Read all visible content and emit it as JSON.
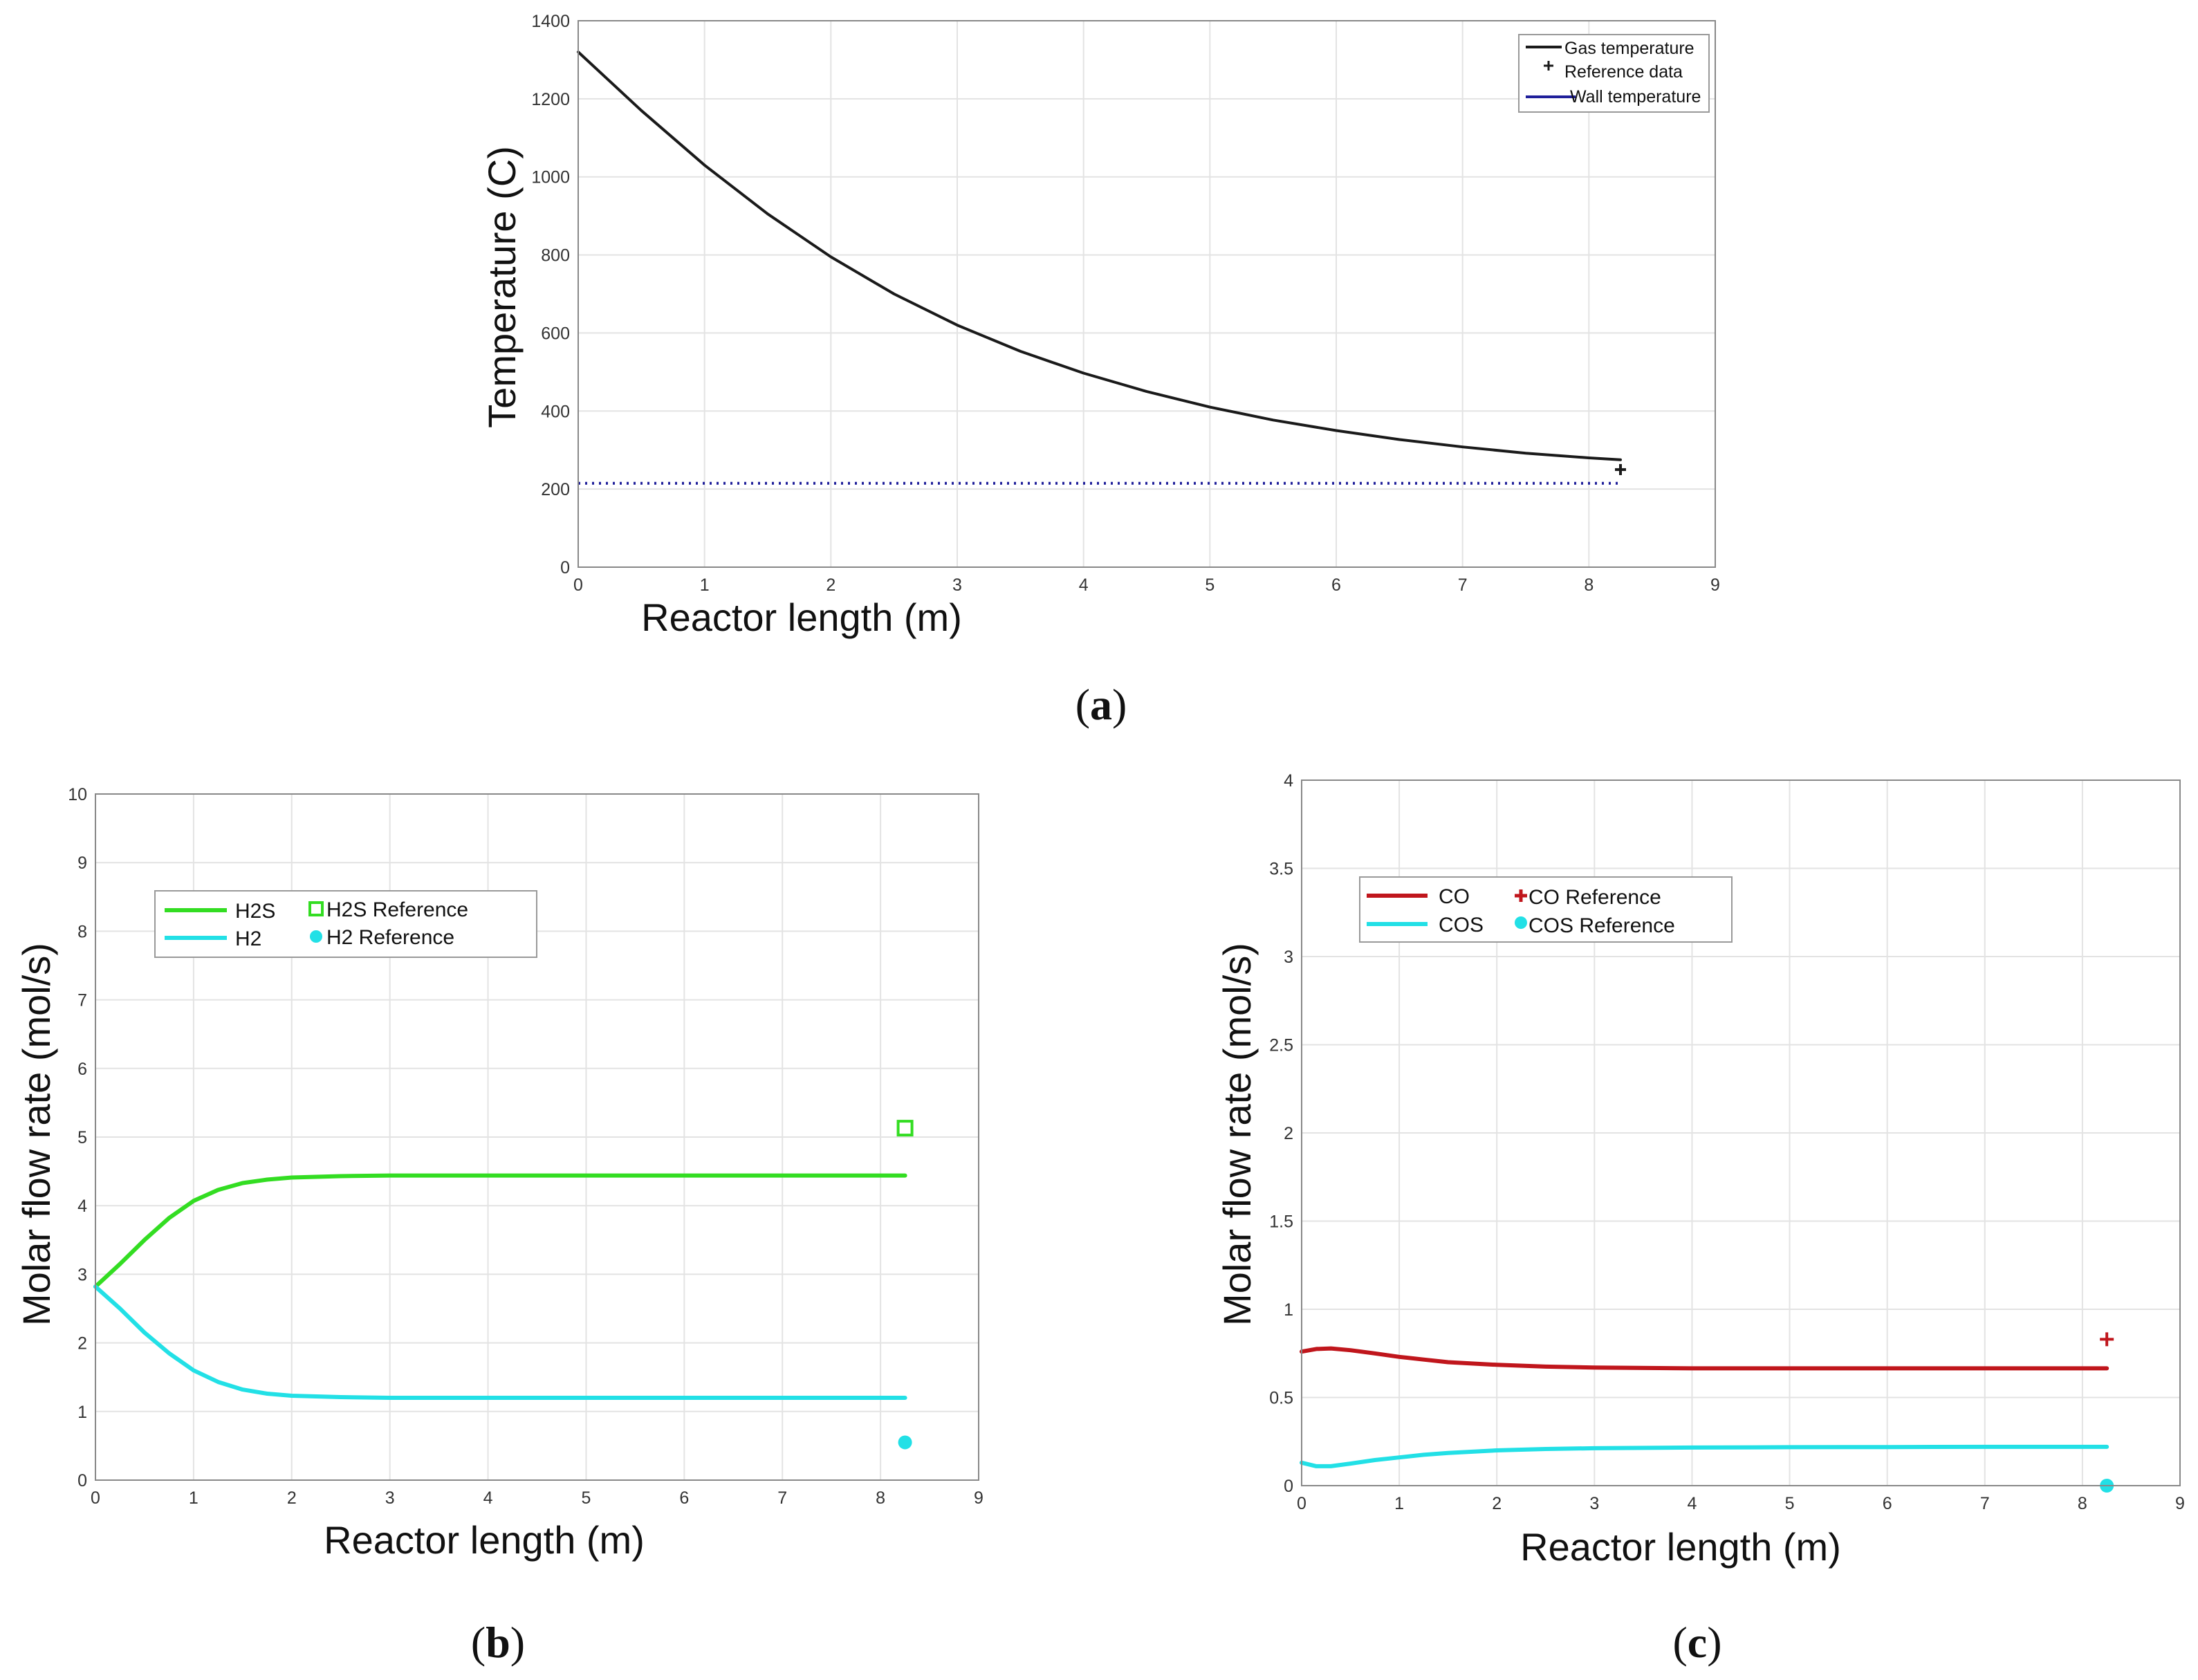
{
  "chart_data": [
    {
      "type": "line",
      "panel_label": "(a)",
      "panel_letter": "a",
      "xlabel": "Reactor length (m)",
      "ylabel": "Temperature (C)",
      "xlim": [
        0,
        9
      ],
      "ylim": [
        0,
        1400
      ],
      "x_ticks": [
        0,
        1,
        2,
        3,
        4,
        5,
        6,
        7,
        8,
        9
      ],
      "y_ticks": [
        0,
        200,
        400,
        600,
        800,
        1000,
        1200,
        1400
      ],
      "grid": true,
      "legend_position": "top-right",
      "series": [
        {
          "name": "Gas temperature",
          "color": "#1a1a1a",
          "style": "solid",
          "x": [
            0,
            0.5,
            1,
            1.5,
            2,
            2.5,
            3,
            3.5,
            4,
            4.5,
            5,
            5.5,
            6,
            6.5,
            7,
            7.5,
            8,
            8.25
          ],
          "y": [
            1320,
            1170,
            1030,
            905,
            795,
            700,
            620,
            553,
            497,
            450,
            410,
            377,
            350,
            327,
            308,
            292,
            280,
            275
          ]
        },
        {
          "name": "Reference data",
          "color": "#1a1a1a",
          "style": "marker-plus",
          "x": [
            8.25
          ],
          "y": [
            250
          ]
        },
        {
          "name": "Wall temperature",
          "color": "#1f1f9a",
          "style": "dotted",
          "x": [
            0,
            8.25
          ],
          "y": [
            215,
            215
          ]
        }
      ]
    },
    {
      "type": "line",
      "panel_label": "(b)",
      "panel_letter": "b",
      "xlabel": "Reactor length (m)",
      "ylabel": "Molar flow rate (mol/s)",
      "xlim": [
        0,
        9
      ],
      "ylim": [
        0,
        10
      ],
      "x_ticks": [
        0,
        1,
        2,
        3,
        4,
        5,
        6,
        7,
        8,
        9
      ],
      "y_ticks": [
        0,
        1,
        2,
        3,
        4,
        5,
        6,
        7,
        8,
        9,
        10
      ],
      "grid": true,
      "legend_position": "top-left",
      "series": [
        {
          "name": "H2S",
          "color": "#33dd22",
          "style": "solid",
          "x": [
            0,
            0.25,
            0.5,
            0.75,
            1,
            1.25,
            1.5,
            1.75,
            2,
            2.5,
            3,
            4,
            5,
            6,
            7,
            8,
            8.25
          ],
          "y": [
            2.82,
            3.15,
            3.5,
            3.82,
            4.07,
            4.23,
            4.33,
            4.38,
            4.41,
            4.43,
            4.44,
            4.44,
            4.44,
            4.44,
            4.44,
            4.44,
            4.44
          ]
        },
        {
          "name": "H2",
          "color": "#22e0e6",
          "style": "solid",
          "x": [
            0,
            0.25,
            0.5,
            0.75,
            1,
            1.25,
            1.5,
            1.75,
            2,
            2.5,
            3,
            4,
            5,
            6,
            7,
            8,
            8.25
          ],
          "y": [
            2.82,
            2.5,
            2.15,
            1.85,
            1.6,
            1.43,
            1.32,
            1.26,
            1.23,
            1.21,
            1.2,
            1.2,
            1.2,
            1.2,
            1.2,
            1.2,
            1.2
          ]
        },
        {
          "name": "H2S Reference",
          "color": "#33dd22",
          "style": "marker-square",
          "x": [
            8.25
          ],
          "y": [
            5.13
          ]
        },
        {
          "name": "H2 Reference",
          "color": "#22e0e6",
          "style": "marker-dot",
          "x": [
            8.25
          ],
          "y": [
            0.55
          ]
        }
      ]
    },
    {
      "type": "line",
      "panel_label": "(c)",
      "panel_letter": "c",
      "xlabel": "Reactor length (m)",
      "ylabel": "Molar flow rate (mol/s)",
      "xlim": [
        0,
        9
      ],
      "ylim": [
        0,
        4
      ],
      "x_ticks": [
        0,
        1,
        2,
        3,
        4,
        5,
        6,
        7,
        8,
        9
      ],
      "y_ticks": [
        0,
        0.5,
        1,
        1.5,
        2,
        2.5,
        3,
        3.5,
        4
      ],
      "grid": true,
      "legend_position": "top-left",
      "series": [
        {
          "name": "CO",
          "color": "#c0161c",
          "style": "solid",
          "x": [
            0,
            0.15,
            0.3,
            0.5,
            0.75,
            1,
            1.25,
            1.5,
            2,
            2.5,
            3,
            4,
            5,
            6,
            7,
            8,
            8.25
          ],
          "y": [
            0.76,
            0.775,
            0.778,
            0.768,
            0.75,
            0.73,
            0.715,
            0.7,
            0.685,
            0.675,
            0.67,
            0.665,
            0.665,
            0.665,
            0.665,
            0.665,
            0.665
          ]
        },
        {
          "name": "COS",
          "color": "#22e0e6",
          "style": "solid",
          "x": [
            0,
            0.15,
            0.3,
            0.5,
            0.75,
            1,
            1.25,
            1.5,
            2,
            2.5,
            3,
            4,
            5,
            6,
            7,
            8,
            8.25
          ],
          "y": [
            0.13,
            0.11,
            0.11,
            0.125,
            0.145,
            0.16,
            0.175,
            0.185,
            0.2,
            0.208,
            0.212,
            0.216,
            0.218,
            0.219,
            0.22,
            0.22,
            0.22
          ]
        },
        {
          "name": "CO Reference",
          "color": "#c0161c",
          "style": "marker-plus",
          "x": [
            8.25
          ],
          "y": [
            0.83
          ]
        },
        {
          "name": "COS Reference",
          "color": "#22e0e6",
          "style": "marker-dot",
          "x": [
            8.25
          ],
          "y": [
            0.0
          ]
        }
      ]
    }
  ]
}
